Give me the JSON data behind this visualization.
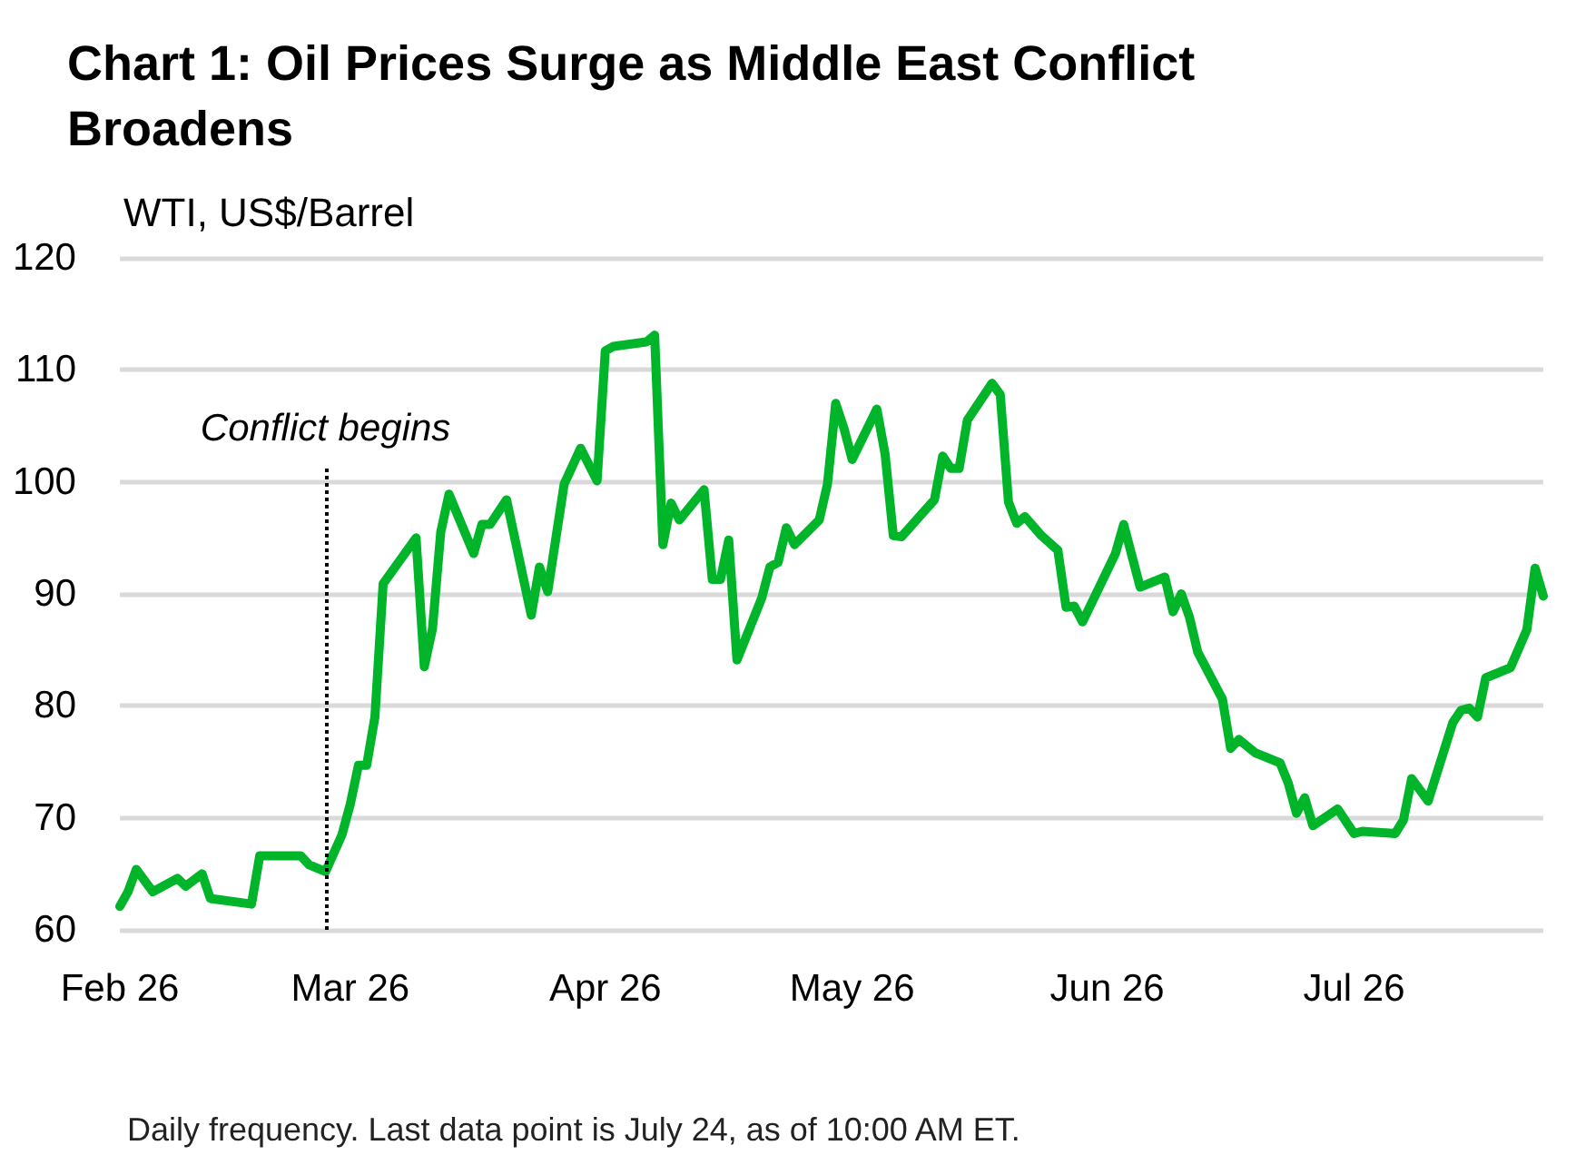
{
  "chart_data": {
    "type": "line",
    "title": "Chart 1: Oil Prices Surge as Middle East Conflict Broadens",
    "ylabel": "WTI, US$/Barrel",
    "x": [
      "2026-02-01",
      "2026-02-02",
      "2026-02-03",
      "2026-02-05",
      "2026-02-08",
      "2026-02-09",
      "2026-02-11",
      "2026-02-12",
      "2026-02-17",
      "2026-02-18",
      "2026-02-23",
      "2026-02-24",
      "2026-02-26",
      "2026-02-28",
      "2026-03-01",
      "2026-03-02",
      "2026-03-03",
      "2026-03-04",
      "2026-03-05",
      "2026-03-09",
      "2026-03-10",
      "2026-03-11",
      "2026-03-12",
      "2026-03-13",
      "2026-03-16",
      "2026-03-17",
      "2026-03-18",
      "2026-03-20",
      "2026-03-23",
      "2026-03-24",
      "2026-03-25",
      "2026-03-27",
      "2026-03-29",
      "2026-03-31",
      "2026-04-01",
      "2026-04-02",
      "2026-04-06",
      "2026-04-07",
      "2026-04-08",
      "2026-04-09",
      "2026-04-10",
      "2026-04-13",
      "2026-04-14",
      "2026-04-15",
      "2026-04-16",
      "2026-04-17",
      "2026-04-20",
      "2026-04-21",
      "2026-04-22",
      "2026-04-23",
      "2026-04-24",
      "2026-04-27",
      "2026-04-28",
      "2026-04-29",
      "2026-04-30",
      "2026-05-01",
      "2026-05-04",
      "2026-05-05",
      "2026-05-06",
      "2026-05-07",
      "2026-05-11",
      "2026-05-12",
      "2026-05-13",
      "2026-05-14",
      "2026-05-15",
      "2026-05-18",
      "2026-05-19",
      "2026-05-20",
      "2026-05-21",
      "2026-05-22",
      "2026-05-24",
      "2026-05-26",
      "2026-05-27",
      "2026-05-28",
      "2026-05-29",
      "2026-06-02",
      "2026-06-03",
      "2026-06-05",
      "2026-06-08",
      "2026-06-09",
      "2026-06-10",
      "2026-06-11",
      "2026-06-12",
      "2026-06-15",
      "2026-06-16",
      "2026-06-17",
      "2026-06-19",
      "2026-06-22",
      "2026-06-23",
      "2026-06-24",
      "2026-06-25",
      "2026-06-26",
      "2026-06-29",
      "2026-07-01",
      "2026-07-02",
      "2026-07-06",
      "2026-07-07",
      "2026-07-08",
      "2026-07-10",
      "2026-07-13",
      "2026-07-14",
      "2026-07-15",
      "2026-07-16",
      "2026-07-17",
      "2026-07-20",
      "2026-07-22",
      "2026-07-23",
      "2026-07-24"
    ],
    "series": [
      {
        "color": "#00b52a",
        "values": [
          62.1,
          63.4,
          65.4,
          63.4,
          64.6,
          63.9,
          65.0,
          62.8,
          62.3,
          66.6,
          66.6,
          65.8,
          65.2,
          68.5,
          71.2,
          74.7,
          74.7,
          79.0,
          90.9,
          95.0,
          83.5,
          86.9,
          95.5,
          98.9,
          93.6,
          96.2,
          96.2,
          98.4,
          88.1,
          92.4,
          90.2,
          99.8,
          103.0,
          100.1,
          111.7,
          112.1,
          112.5,
          113.1,
          94.4,
          98.1,
          96.6,
          99.3,
          91.3,
          91.3,
          94.8,
          84.1,
          89.6,
          92.4,
          92.8,
          95.9,
          94.4,
          96.6,
          99.8,
          107.0,
          104.8,
          102.0,
          106.5,
          102.5,
          95.2,
          95.1,
          98.4,
          102.3,
          101.2,
          101.2,
          105.5,
          108.8,
          107.8,
          98.2,
          96.3,
          96.9,
          95.2,
          93.9,
          88.8,
          88.9,
          87.5,
          93.6,
          96.2,
          90.6,
          91.5,
          88.4,
          90.0,
          87.9,
          84.8,
          80.6,
          76.2,
          77.0,
          75.8,
          74.9,
          73.1,
          70.4,
          71.8,
          69.3,
          70.8,
          68.6,
          68.8,
          68.6,
          69.8,
          73.5,
          71.5,
          78.5,
          79.6,
          79.8,
          79.0,
          82.5,
          83.4,
          86.8,
          92.3,
          89.8
        ]
      }
    ],
    "xlim": [
      "2026-02-01",
      "2026-07-24"
    ],
    "xticks": [
      {
        "value": "2026-02-01",
        "label": "Feb 26"
      },
      {
        "value": "2026-03-01",
        "label": "Mar 26"
      },
      {
        "value": "2026-04-01",
        "label": "Apr 26"
      },
      {
        "value": "2026-05-01",
        "label": "May 26"
      },
      {
        "value": "2026-06-01",
        "label": "Jun 26"
      },
      {
        "value": "2026-07-01",
        "label": "Jul 26"
      }
    ],
    "ylim": [
      60,
      120
    ],
    "yticks": [
      60,
      70,
      80,
      90,
      100,
      110,
      120
    ],
    "grid": "y",
    "marker": "none",
    "line_style": "solid",
    "ref_lines": [
      {
        "axis": "x",
        "value": "2026-02-26",
        "label": "Conflict begins",
        "color": "#000000",
        "line_style": "dotted"
      }
    ],
    "annotations": [
      "Daily frequency. Last data point is July 24, as of 10:00 AM ET."
    ]
  }
}
